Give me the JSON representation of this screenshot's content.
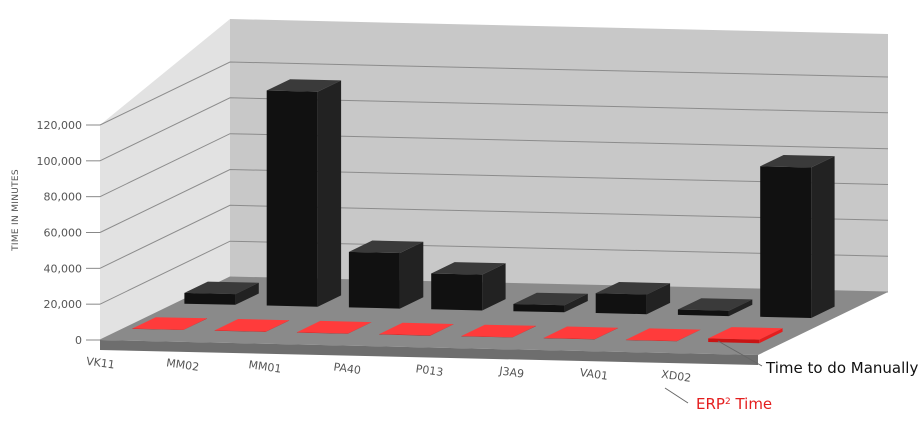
{
  "chart_data": {
    "type": "bar",
    "ylabel": "TIME IN MINUTES",
    "ylim": [
      0,
      120000
    ],
    "yticks": [
      "0",
      "20,000",
      "40,000",
      "60,000",
      "80,000",
      "100,000",
      "120,000"
    ],
    "categories": [
      "VK11",
      "MM02",
      "MM01",
      "PA40",
      "P013",
      "J3A9",
      "VA01",
      "XD02"
    ],
    "series": [
      {
        "name": "Time to do Manually",
        "color": "#1b1b1b",
        "values": [
          6000,
          120000,
          31000,
          20000,
          4000,
          11000,
          3000,
          84000
        ]
      },
      {
        "name": "ERP",
        "superscript": "2",
        "suffix": " Time",
        "color": "#e41e1e",
        "values": [
          200,
          200,
          200,
          200,
          200,
          200,
          200,
          2000
        ]
      }
    ],
    "grid": true,
    "legend": "right"
  }
}
